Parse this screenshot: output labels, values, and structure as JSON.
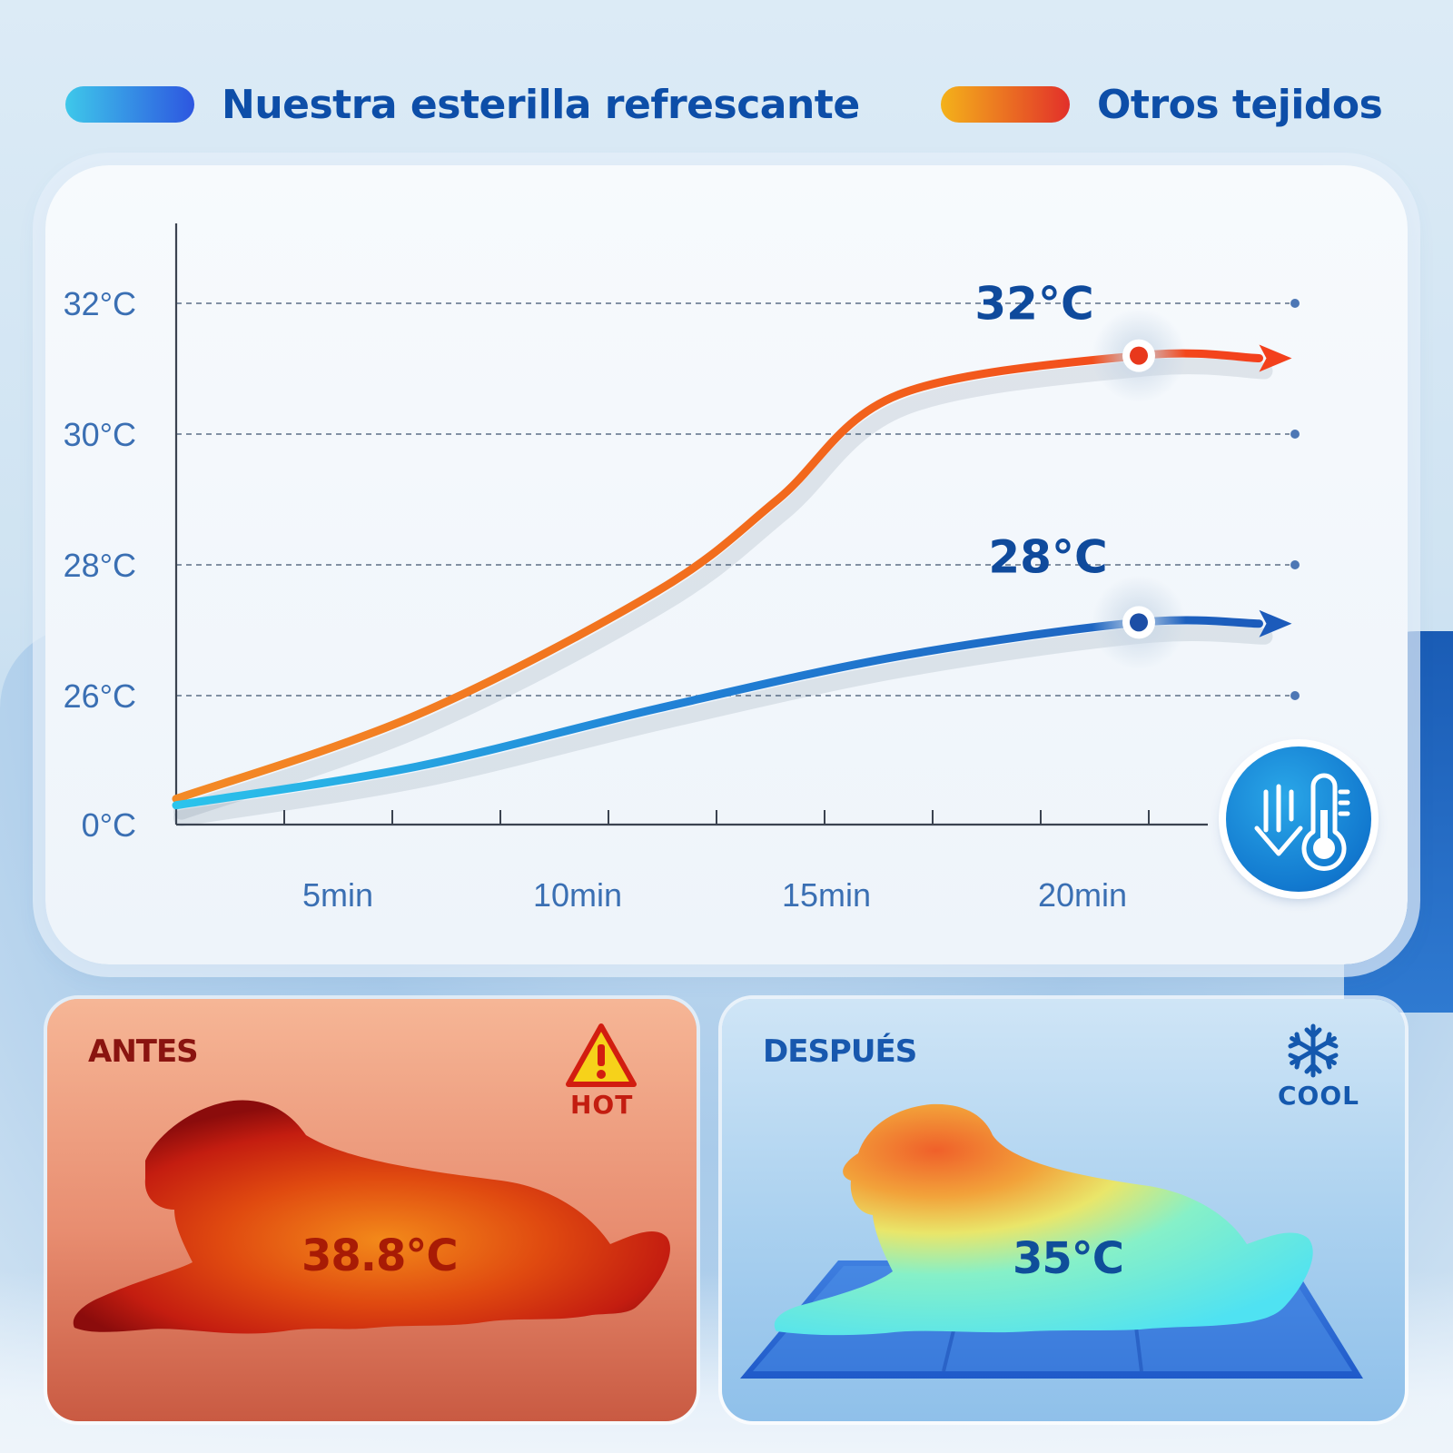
{
  "legend": {
    "ours": {
      "label": "Nuestra esterilla refrescante",
      "color_start": "#3ec8ea",
      "color_end": "#2d56e0"
    },
    "others": {
      "label": "Otros tejidos",
      "color_start": "#f4b21a",
      "color_end": "#e2302a"
    }
  },
  "chart_data": {
    "type": "line",
    "x_tick_labels": [
      "5min",
      "10min",
      "15min",
      "20min"
    ],
    "y_tick_labels": [
      "0°C",
      "26°C",
      "28°C",
      "30°C",
      "32°C"
    ],
    "y_ticks": [
      0,
      26,
      28,
      30,
      32
    ],
    "series": [
      {
        "name": "Otros tejidos",
        "color": "#f0521e",
        "points": [
          [
            0,
            0.2
          ],
          [
            5,
            0.85
          ],
          [
            10,
            1.8
          ],
          [
            12.5,
            2.5
          ],
          [
            15,
            3.3
          ],
          [
            20,
            3.6
          ],
          [
            22.5,
            3.58
          ]
        ],
        "peak_label": "32°C"
      },
      {
        "name": "Nuestra esterilla refrescante",
        "color": "#1f6cc9",
        "points": [
          [
            0,
            0.15
          ],
          [
            5,
            0.45
          ],
          [
            10,
            0.9
          ],
          [
            15,
            1.3
          ],
          [
            20,
            1.56
          ],
          [
            22.5,
            1.55
          ]
        ],
        "peak_label": "28°C"
      }
    ],
    "grid": "dashed-horizontal",
    "legend_position": "top"
  },
  "before": {
    "title": "ANTES",
    "badge": "HOT",
    "temperature": "38.8°C"
  },
  "after": {
    "title": "DESPUÉS",
    "badge": "COOL",
    "temperature": "35°C"
  },
  "icons": [
    "thermometer-down-icon",
    "warning-icon",
    "snowflake-icon"
  ]
}
